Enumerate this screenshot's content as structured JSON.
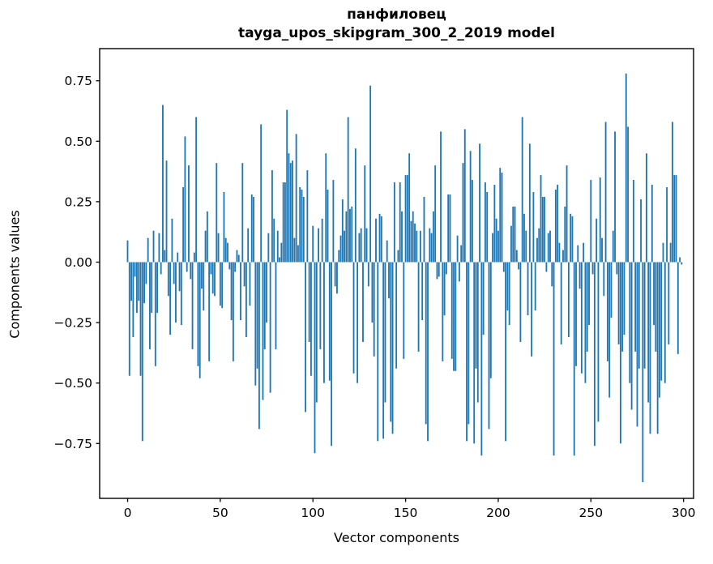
{
  "figure": {
    "title_line1": "панфиловец",
    "title_line2": "tayga_upos_skipgram_300_2_2019 model",
    "xlabel": "Vector components",
    "ylabel": "Components values"
  },
  "chart_data": {
    "type": "bar",
    "title": "панфиловец — tayga_upos_skipgram_300_2_2019 model",
    "xlabel": "Vector components",
    "ylabel": "Components values",
    "bar_color": "#1f77b4",
    "axis_color": "#000000",
    "grid": false,
    "legend": null,
    "n_components": 300,
    "x_ticks": [
      0,
      50,
      100,
      150,
      200,
      250,
      300
    ],
    "y_ticks": [
      0.75,
      0.5,
      0.25,
      0.0,
      -0.25,
      -0.5,
      -0.75
    ],
    "y_tick_labels": [
      "0.75",
      "0.50",
      "0.25",
      "0.00",
      "−0.25",
      "−0.50",
      "−0.75"
    ],
    "xlim": [
      -15.1,
      305.4
    ],
    "ylim": [
      -0.978,
      0.884
    ],
    "values": [
      0.09,
      -0.47,
      -0.16,
      -0.31,
      -0.06,
      -0.21,
      -0.16,
      -0.47,
      -0.74,
      -0.17,
      -0.09,
      0.1,
      -0.36,
      -0.21,
      0.13,
      -0.43,
      -0.21,
      0.12,
      -0.05,
      0.65,
      0.05,
      0.42,
      -0.14,
      -0.3,
      0.18,
      -0.09,
      -0.25,
      0.04,
      -0.12,
      -0.26,
      0.31,
      0.52,
      -0.04,
      0.4,
      -0.07,
      -0.36,
      0.04,
      0.6,
      -0.43,
      -0.48,
      -0.11,
      -0.2,
      0.13,
      0.21,
      -0.41,
      -0.05,
      -0.13,
      -0.14,
      0.41,
      0.12,
      -0.18,
      -0.19,
      0.29,
      0.1,
      0.08,
      -0.03,
      -0.24,
      -0.41,
      -0.04,
      0.05,
      0.03,
      -0.24,
      0.41,
      -0.1,
      -0.31,
      0.14,
      -0.18,
      0.28,
      0.27,
      -0.51,
      -0.44,
      -0.69,
      0.57,
      -0.57,
      -0.36,
      -0.25,
      0.12,
      -0.54,
      0.38,
      0.18,
      -0.36,
      0.13,
      0.02,
      0.08,
      0.33,
      0.33,
      0.63,
      0.45,
      0.41,
      0.42,
      0.1,
      0.53,
      0.07,
      0.31,
      0.3,
      0.27,
      -0.62,
      0.38,
      -0.33,
      -0.47,
      0.15,
      -0.79,
      -0.58,
      0.14,
      -0.36,
      0.18,
      -0.5,
      0.45,
      0.3,
      -0.49,
      -0.76,
      0.34,
      -0.1,
      -0.13,
      0.05,
      0.11,
      0.26,
      0.13,
      0.21,
      0.6,
      0.22,
      0.23,
      -0.46,
      0.47,
      -0.5,
      0.12,
      0.14,
      -0.33,
      0.4,
      0.14,
      -0.1,
      0.73,
      -0.25,
      -0.39,
      0.18,
      -0.74,
      0.2,
      0.19,
      -0.73,
      -0.58,
      0.09,
      -0.15,
      -0.66,
      -0.71,
      0.33,
      -0.44,
      0.05,
      0.33,
      0.21,
      -0.4,
      0.36,
      0.36,
      0.45,
      0.17,
      0.21,
      0.16,
      0.13,
      -0.37,
      0.13,
      -0.24,
      0.27,
      -0.67,
      -0.74,
      0.14,
      0.12,
      0.21,
      0.4,
      -0.07,
      -0.06,
      0.54,
      -0.41,
      -0.22,
      -0.05,
      0.28,
      0.28,
      -0.4,
      -0.45,
      -0.45,
      0.11,
      -0.08,
      0.07,
      0.41,
      0.55,
      -0.74,
      -0.67,
      0.46,
      0.34,
      -0.75,
      -0.44,
      -0.58,
      0.49,
      -0.8,
      -0.3,
      0.33,
      0.29,
      -0.69,
      -0.48,
      0.12,
      0.32,
      0.18,
      0.13,
      0.39,
      0.37,
      -0.04,
      -0.74,
      -0.2,
      -0.26,
      0.15,
      0.23,
      0.23,
      0.05,
      -0.03,
      -0.33,
      0.6,
      0.2,
      0.13,
      -0.22,
      0.49,
      -0.39,
      0.29,
      -0.2,
      0.1,
      0.14,
      0.36,
      0.27,
      0.27,
      -0.04,
      0.12,
      0.13,
      -0.1,
      -0.8,
      0.3,
      0.32,
      0.08,
      -0.34,
      0.05,
      0.23,
      0.4,
      -0.31,
      0.2,
      0.19,
      -0.8,
      -0.43,
      0.07,
      -0.11,
      -0.46,
      0.08,
      -0.5,
      -0.37,
      -0.26,
      0.34,
      -0.05,
      -0.76,
      0.18,
      -0.66,
      0.35,
      0.1,
      -0.14,
      0.58,
      -0.41,
      -0.56,
      -0.23,
      0.13,
      0.54,
      -0.05,
      -0.34,
      -0.75,
      -0.37,
      -0.3,
      0.78,
      0.56,
      -0.5,
      -0.61,
      0.34,
      -0.37,
      -0.68,
      -0.44,
      0.26,
      -0.91,
      -0.44,
      0.45,
      -0.58,
      -0.71,
      0.32,
      -0.26,
      -0.37,
      -0.71,
      -0.56,
      -0.49,
      0.08,
      -0.5,
      0.31,
      -0.34,
      0.08,
      0.58,
      0.36,
      0.36,
      -0.38,
      0.02,
      -0.01
    ]
  }
}
